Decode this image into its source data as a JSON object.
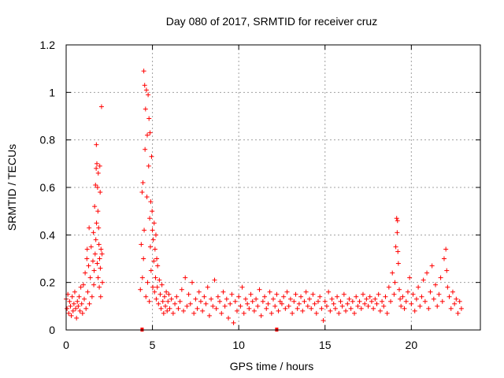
{
  "chart_data": {
    "type": "scatter",
    "title": "Day 080 of 2017, SRMTID for receiver cruz",
    "xlabel": "GPS time / hours",
    "ylabel": "SRMTID / TECUs",
    "xlim": [
      0,
      24
    ],
    "ylim": [
      0,
      1.2
    ],
    "xticks": [
      0,
      5,
      10,
      15,
      20
    ],
    "xtick_labels": [
      "0",
      "5",
      "10",
      "15",
      "20"
    ],
    "yticks": [
      0,
      0.2,
      0.4,
      0.6,
      0.8,
      1.0,
      1.2
    ],
    "ytick_labels": [
      "0",
      "0.2",
      "0.4",
      "0.6",
      "0.8",
      "1",
      "1.2"
    ],
    "grid": true,
    "marker": "+",
    "color": "#ff0000",
    "series": [
      {
        "name": "SRMTID",
        "points": [
          [
            0.0,
            0.13
          ],
          [
            0.05,
            0.09
          ],
          [
            0.1,
            0.15
          ],
          [
            0.15,
            0.07
          ],
          [
            0.2,
            0.12
          ],
          [
            0.25,
            0.1
          ],
          [
            0.3,
            0.06
          ],
          [
            0.35,
            0.14
          ],
          [
            0.4,
            0.08
          ],
          [
            0.45,
            0.11
          ],
          [
            0.5,
            0.16
          ],
          [
            0.55,
            0.09
          ],
          [
            0.6,
            0.05
          ],
          [
            0.65,
            0.12
          ],
          [
            0.7,
            0.1
          ],
          [
            0.75,
            0.14
          ],
          [
            0.8,
            0.08
          ],
          [
            0.85,
            0.18
          ],
          [
            0.9,
            0.11
          ],
          [
            0.95,
            0.07
          ],
          [
            1.0,
            0.19
          ],
          [
            1.05,
            0.13
          ],
          [
            1.1,
            0.24
          ],
          [
            1.15,
            0.09
          ],
          [
            1.2,
            0.3
          ],
          [
            1.22,
            0.34
          ],
          [
            1.25,
            0.16
          ],
          [
            1.3,
            0.27
          ],
          [
            1.33,
            0.43
          ],
          [
            1.35,
            0.11
          ],
          [
            1.4,
            0.22
          ],
          [
            1.45,
            0.35
          ],
          [
            1.5,
            0.14
          ],
          [
            1.55,
            0.29
          ],
          [
            1.58,
            0.41
          ],
          [
            1.6,
            0.19
          ],
          [
            1.62,
            0.25
          ],
          [
            1.65,
            0.52
          ],
          [
            1.68,
            0.32
          ],
          [
            1.7,
            0.61
          ],
          [
            1.72,
            0.38
          ],
          [
            1.74,
            0.68
          ],
          [
            1.75,
            0.78
          ],
          [
            1.76,
            0.45
          ],
          [
            1.78,
            0.7
          ],
          [
            1.8,
            0.28
          ],
          [
            1.82,
            0.6
          ],
          [
            1.84,
            0.5
          ],
          [
            1.85,
            0.22
          ],
          [
            1.86,
            0.66
          ],
          [
            1.88,
            0.43
          ],
          [
            1.9,
            0.36
          ],
          [
            1.92,
            0.18
          ],
          [
            1.94,
            0.3
          ],
          [
            1.95,
            0.69
          ],
          [
            1.97,
            0.58
          ],
          [
            1.98,
            0.26
          ],
          [
            2.0,
            0.14
          ],
          [
            2.02,
            0.34
          ],
          [
            2.05,
            0.94
          ],
          [
            2.08,
            0.32
          ],
          [
            2.1,
            0.2
          ],
          [
            4.3,
            0.17
          ],
          [
            4.35,
            0.36
          ],
          [
            4.4,
            0.58
          ],
          [
            4.42,
            0.22
          ],
          [
            4.45,
            0.62
          ],
          [
            4.48,
            0.3
          ],
          [
            4.5,
            1.09
          ],
          [
            4.52,
            0.42
          ],
          [
            4.55,
            1.03
          ],
          [
            4.57,
            0.76
          ],
          [
            4.6,
            0.93
          ],
          [
            4.62,
            0.14
          ],
          [
            4.65,
            1.01
          ],
          [
            4.68,
            0.56
          ],
          [
            4.7,
            0.82
          ],
          [
            4.72,
            0.2
          ],
          [
            4.75,
            0.99
          ],
          [
            4.78,
            0.69
          ],
          [
            4.8,
            0.89
          ],
          [
            4.82,
            0.12
          ],
          [
            4.84,
            0.47
          ],
          [
            4.86,
            0.83
          ],
          [
            4.88,
            0.35
          ],
          [
            4.9,
            0.54
          ],
          [
            4.92,
            0.25
          ],
          [
            4.95,
            0.73
          ],
          [
            4.98,
            0.5
          ],
          [
            5.0,
            0.42
          ],
          [
            5.02,
            0.18
          ],
          [
            5.05,
            0.38
          ],
          [
            5.08,
            0.29
          ],
          [
            5.1,
            0.45
          ],
          [
            5.12,
            0.16
          ],
          [
            5.15,
            0.34
          ],
          [
            5.18,
            0.22
          ],
          [
            5.2,
            0.4
          ],
          [
            5.22,
            0.13
          ],
          [
            5.25,
            0.3
          ],
          [
            5.28,
            0.18
          ],
          [
            5.3,
            0.27
          ],
          [
            5.35,
            0.11
          ],
          [
            5.4,
            0.21
          ],
          [
            5.45,
            0.15
          ],
          [
            5.5,
            0.09
          ],
          [
            5.55,
            0.19
          ],
          [
            5.6,
            0.12
          ],
          [
            5.65,
            0.07
          ],
          [
            5.7,
            0.14
          ],
          [
            5.75,
            0.1
          ],
          [
            5.8,
            0.16
          ],
          [
            5.85,
            0.08
          ],
          [
            5.9,
            0.12
          ],
          [
            5.95,
            0.15
          ],
          [
            6.0,
            0.09
          ],
          [
            6.1,
            0.13
          ],
          [
            6.2,
            0.07
          ],
          [
            6.3,
            0.11
          ],
          [
            6.4,
            0.14
          ],
          [
            6.5,
            0.09
          ],
          [
            6.6,
            0.12
          ],
          [
            6.7,
            0.17
          ],
          [
            6.8,
            0.08
          ],
          [
            6.9,
            0.22
          ],
          [
            7.0,
            0.1
          ],
          [
            7.1,
            0.15
          ],
          [
            7.2,
            0.11
          ],
          [
            7.3,
            0.2
          ],
          [
            7.4,
            0.07
          ],
          [
            7.5,
            0.13
          ],
          [
            7.6,
            0.09
          ],
          [
            7.7,
            0.16
          ],
          [
            7.8,
            0.12
          ],
          [
            7.9,
            0.08
          ],
          [
            8.0,
            0.14
          ],
          [
            8.1,
            0.11
          ],
          [
            8.2,
            0.18
          ],
          [
            8.3,
            0.06
          ],
          [
            8.4,
            0.13
          ],
          [
            8.5,
            0.1
          ],
          [
            8.6,
            0.21
          ],
          [
            8.7,
            0.09
          ],
          [
            8.8,
            0.14
          ],
          [
            8.9,
            0.12
          ],
          [
            9.0,
            0.07
          ],
          [
            9.1,
            0.16
          ],
          [
            9.2,
            0.1
          ],
          [
            9.3,
            0.13
          ],
          [
            9.4,
            0.05
          ],
          [
            9.5,
            0.11
          ],
          [
            9.6,
            0.15
          ],
          [
            9.7,
            0.03
          ],
          [
            9.8,
            0.12
          ],
          [
            9.9,
            0.08
          ],
          [
            10.0,
            0.14
          ],
          [
            10.1,
            0.1
          ],
          [
            10.2,
            0.18
          ],
          [
            10.3,
            0.07
          ],
          [
            10.4,
            0.13
          ],
          [
            10.5,
            0.11
          ],
          [
            10.6,
            0.09
          ],
          [
            10.7,
            0.15
          ],
          [
            10.8,
            0.12
          ],
          [
            10.9,
            0.08
          ],
          [
            11.0,
            0.13
          ],
          [
            11.1,
            0.1
          ],
          [
            11.2,
            0.17
          ],
          [
            11.3,
            0.06
          ],
          [
            11.4,
            0.12
          ],
          [
            11.5,
            0.14
          ],
          [
            11.6,
            0.09
          ],
          [
            11.7,
            0.11
          ],
          [
            11.8,
            0.16
          ],
          [
            11.9,
            0.07
          ],
          [
            12.0,
            0.13
          ],
          [
            12.1,
            0.1
          ],
          [
            12.2,
            0.15
          ],
          [
            12.3,
            0.08
          ],
          [
            12.4,
            0.12
          ],
          [
            12.5,
            0.11
          ],
          [
            12.6,
            0.14
          ],
          [
            12.7,
            0.09
          ],
          [
            12.8,
            0.16
          ],
          [
            12.9,
            0.1
          ],
          [
            13.0,
            0.13
          ],
          [
            13.1,
            0.07
          ],
          [
            13.2,
            0.12
          ],
          [
            13.3,
            0.15
          ],
          [
            13.4,
            0.09
          ],
          [
            13.5,
            0.11
          ],
          [
            13.6,
            0.14
          ],
          [
            13.7,
            0.08
          ],
          [
            13.8,
            0.12
          ],
          [
            13.9,
            0.16
          ],
          [
            14.0,
            0.1
          ],
          [
            14.1,
            0.13
          ],
          [
            14.2,
            0.09
          ],
          [
            14.3,
            0.15
          ],
          [
            14.4,
            0.11
          ],
          [
            14.5,
            0.07
          ],
          [
            14.6,
            0.12
          ],
          [
            14.7,
            0.14
          ],
          [
            14.8,
            0.09
          ],
          [
            14.9,
            0.04
          ],
          [
            15.0,
            0.12
          ],
          [
            15.1,
            0.1
          ],
          [
            15.2,
            0.16
          ],
          [
            15.3,
            0.08
          ],
          [
            15.4,
            0.13
          ],
          [
            15.5,
            0.11
          ],
          [
            15.6,
            0.09
          ],
          [
            15.7,
            0.14
          ],
          [
            15.8,
            0.07
          ],
          [
            15.9,
            0.12
          ],
          [
            16.0,
            0.1
          ],
          [
            16.1,
            0.15
          ],
          [
            16.2,
            0.08
          ],
          [
            16.3,
            0.11
          ],
          [
            16.4,
            0.13
          ],
          [
            16.5,
            0.09
          ],
          [
            16.6,
            0.12
          ],
          [
            16.7,
            0.07
          ],
          [
            16.8,
            0.14
          ],
          [
            16.9,
            0.1
          ],
          [
            17.0,
            0.12
          ],
          [
            17.1,
            0.09
          ],
          [
            17.2,
            0.15
          ],
          [
            17.3,
            0.11
          ],
          [
            17.4,
            0.13
          ],
          [
            17.5,
            0.1
          ],
          [
            17.6,
            0.14
          ],
          [
            17.7,
            0.12
          ],
          [
            17.8,
            0.09
          ],
          [
            17.9,
            0.13
          ],
          [
            18.0,
            0.11
          ],
          [
            18.1,
            0.15
          ],
          [
            18.2,
            0.08
          ],
          [
            18.3,
            0.12
          ],
          [
            18.4,
            0.1
          ],
          [
            18.5,
            0.14
          ],
          [
            18.6,
            0.07
          ],
          [
            18.7,
            0.18
          ],
          [
            18.8,
            0.12
          ],
          [
            18.9,
            0.24
          ],
          [
            19.0,
            0.15
          ],
          [
            19.05,
            0.2
          ],
          [
            19.1,
            0.35
          ],
          [
            19.15,
            0.47
          ],
          [
            19.18,
            0.41
          ],
          [
            19.2,
            0.46
          ],
          [
            19.22,
            0.33
          ],
          [
            19.25,
            0.28
          ],
          [
            19.3,
            0.17
          ],
          [
            19.35,
            0.13
          ],
          [
            19.4,
            0.1
          ],
          [
            19.5,
            0.14
          ],
          [
            19.6,
            0.09
          ],
          [
            19.7,
            0.12
          ],
          [
            19.8,
            0.16
          ],
          [
            19.9,
            0.22
          ],
          [
            20.0,
            0.11
          ],
          [
            20.1,
            0.15
          ],
          [
            20.2,
            0.08
          ],
          [
            20.3,
            0.13
          ],
          [
            20.4,
            0.18
          ],
          [
            20.5,
            0.1
          ],
          [
            20.6,
            0.14
          ],
          [
            20.7,
            0.21
          ],
          [
            20.8,
            0.12
          ],
          [
            20.9,
            0.24
          ],
          [
            21.0,
            0.09
          ],
          [
            21.1,
            0.16
          ],
          [
            21.2,
            0.27
          ],
          [
            21.3,
            0.13
          ],
          [
            21.4,
            0.19
          ],
          [
            21.5,
            0.1
          ],
          [
            21.6,
            0.15
          ],
          [
            21.7,
            0.22
          ],
          [
            21.8,
            0.12
          ],
          [
            21.9,
            0.3
          ],
          [
            22.0,
            0.34
          ],
          [
            22.05,
            0.25
          ],
          [
            22.1,
            0.18
          ],
          [
            22.2,
            0.14
          ],
          [
            22.3,
            0.09
          ],
          [
            22.4,
            0.16
          ],
          [
            22.5,
            0.11
          ],
          [
            22.6,
            0.13
          ],
          [
            22.7,
            0.07
          ],
          [
            22.8,
            0.12
          ],
          [
            22.9,
            0.09
          ]
        ]
      }
    ],
    "markers_on_axis": [
      4.4,
      12.2
    ]
  }
}
